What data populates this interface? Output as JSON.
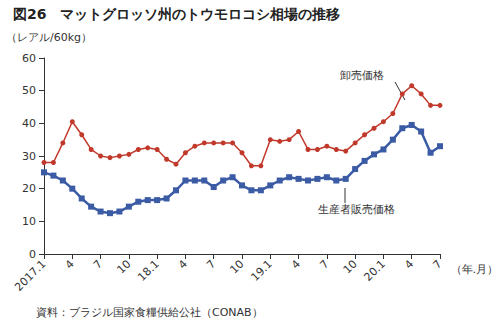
{
  "chart_data": {
    "type": "line",
    "title": "図26　マットグロッソ州のトウモロコシ相場の推移",
    "y_label": "（レアル/60kg）",
    "x_label": "（年.月）",
    "source": "資料：ブラジル国家食糧供給公社（CONAB）",
    "categories": [
      "2017.1",
      null,
      null,
      "4",
      null,
      null,
      "7",
      null,
      null,
      "10",
      null,
      null,
      "18.1",
      null,
      null,
      "4",
      null,
      null,
      "7",
      null,
      null,
      "10",
      null,
      null,
      "19.1",
      null,
      null,
      "4",
      null,
      null,
      "7",
      null,
      null,
      "10",
      null,
      null,
      "20.1",
      null,
      null,
      "4",
      null,
      null,
      "7"
    ],
    "series": [
      {
        "name": "卸売価格",
        "color": "#c0392b",
        "marker": "circle",
        "values": [
          28,
          28,
          34,
          40.5,
          36.5,
          32,
          30,
          29.5,
          30,
          30.5,
          32,
          32.5,
          32,
          29,
          27.5,
          31,
          33,
          34,
          34,
          34,
          34,
          31,
          27,
          27,
          35,
          34.5,
          35,
          37.5,
          32,
          32,
          33,
          32,
          31.5,
          34,
          36.5,
          38.5,
          40.5,
          43,
          49,
          51.5,
          49,
          45.5,
          45.5
        ]
      },
      {
        "name": "生産者販売価格",
        "color": "#3b5ba5",
        "marker": "square",
        "values": [
          25,
          24,
          22.5,
          20,
          17,
          14.5,
          13,
          12.5,
          13,
          14.5,
          16,
          16.5,
          16.5,
          17,
          19.5,
          22.5,
          22.5,
          22.5,
          20.5,
          22.5,
          23.5,
          21,
          19.5,
          19.5,
          21,
          22.5,
          23.5,
          23,
          22.5,
          23,
          23.5,
          22.5,
          23,
          26,
          28.5,
          30.5,
          32,
          35,
          38.5,
          39.5,
          37.5,
          31,
          33
        ]
      }
    ],
    "ylim": [
      0,
      60
    ],
    "yticks": [
      0,
      10,
      20,
      30,
      40,
      50,
      60
    ],
    "grid": false
  }
}
